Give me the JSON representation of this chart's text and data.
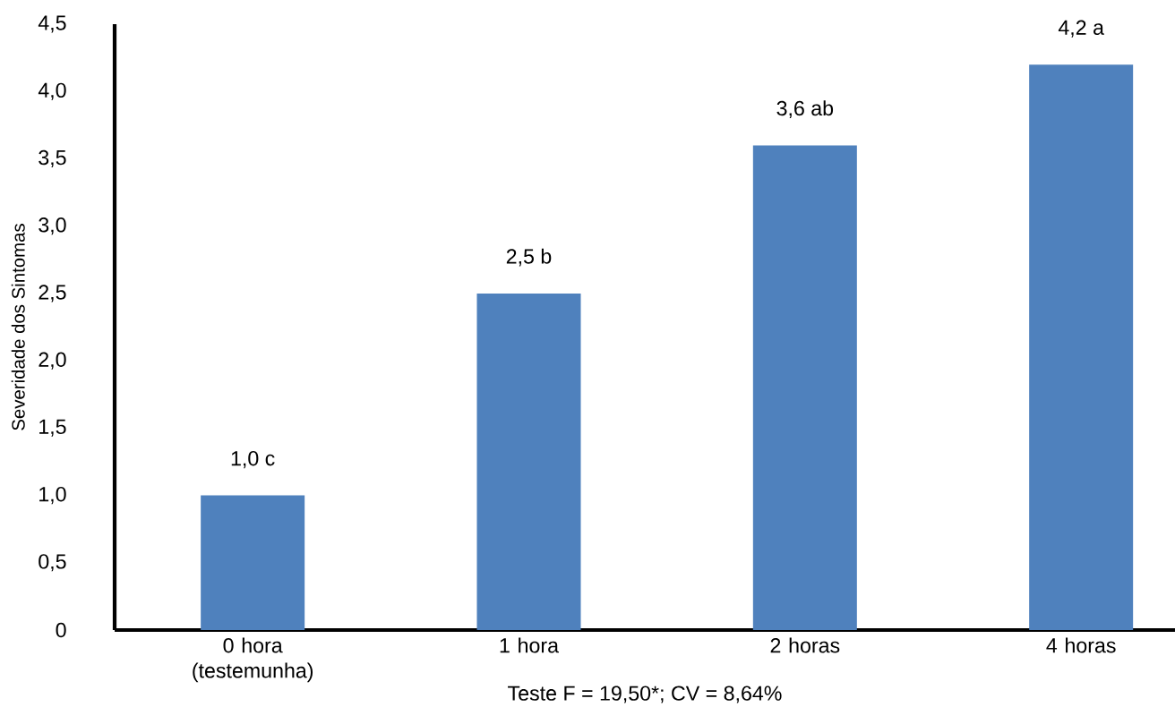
{
  "chart_data": {
    "type": "bar",
    "ylabel": "Severidade dos Sintomas",
    "annotations": [
      "Teste F = 19,50*; CV = 8,64%"
    ],
    "categories": [
      "0 hora (testemunha)",
      "1 hora",
      "2 horas",
      "4 horas"
    ],
    "values": [
      1.0,
      2.5,
      3.6,
      4.2
    ],
    "value_labels": [
      "1,0 c",
      "2,5 b",
      "3,6 ab",
      "4,2 a"
    ],
    "color": "#4f81bd",
    "ylim": [
      0,
      4.5
    ],
    "yticks": [
      0,
      {
        "value": 0.5,
        "label": "0,5"
      },
      {
        "value": 1,
        "label": "1,0"
      },
      {
        "value": 1.5,
        "label": "1,5"
      },
      {
        "value": 2,
        "label": "2,0"
      },
      {
        "value": 2.5,
        "label": "2,5"
      },
      {
        "value": 3,
        "label": "3,0"
      },
      {
        "value": 3.5,
        "label": "3,5"
      },
      {
        "value": 4,
        "label": "4,0"
      },
      {
        "value": 4.5,
        "label": "4,5"
      }
    ]
  }
}
